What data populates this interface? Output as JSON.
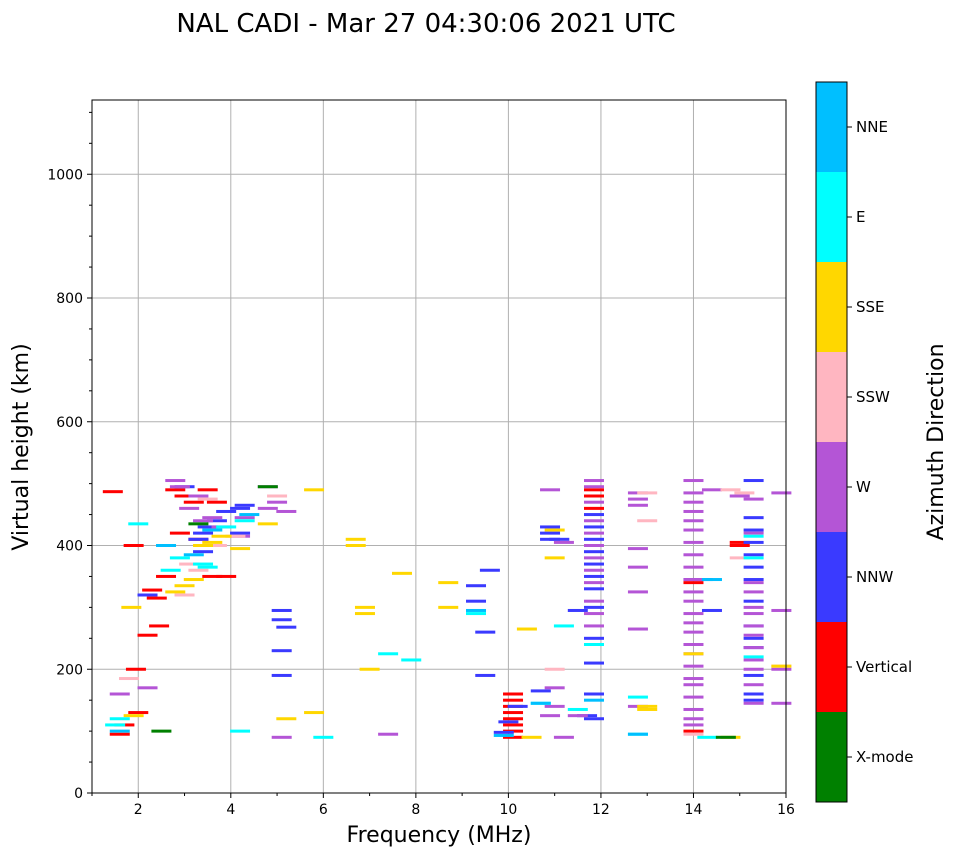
{
  "chart_data": {
    "type": "scatter",
    "title": "NAL CADI - Mar 27 04:30:06 2021 UTC",
    "xlabel": "Frequency (MHz)",
    "ylabel": "Virtual height (km)",
    "xlim": [
      1,
      16
    ],
    "ylim": [
      0,
      1120
    ],
    "xticks": [
      2,
      4,
      6,
      8,
      10,
      12,
      14,
      16
    ],
    "yticks": [
      0,
      200,
      400,
      600,
      800,
      1000
    ],
    "grid": true,
    "colorbar": {
      "label": "Azimuth Direction",
      "categories": [
        {
          "name": "X-mode",
          "color": "#008000"
        },
        {
          "name": "Vertical",
          "color": "#ff0000"
        },
        {
          "name": "NNW",
          "color": "#3a3aff"
        },
        {
          "name": "W",
          "color": "#b455d6"
        },
        {
          "name": "SSW",
          "color": "#ffb6c1"
        },
        {
          "name": "SSE",
          "color": "#ffd700"
        },
        {
          "name": "E",
          "color": "#00ffff"
        },
        {
          "name": "NNE",
          "color": "#00bfff"
        }
      ]
    },
    "series": [
      {
        "name": "Vertical",
        "points": [
          [
            1.45,
            487
          ],
          [
            1.9,
            400
          ],
          [
            1.95,
            200
          ],
          [
            2.3,
            328
          ],
          [
            2.45,
            270
          ],
          [
            2.2,
            255
          ],
          [
            2.8,
            490
          ],
          [
            3.0,
            480
          ],
          [
            3.2,
            470
          ],
          [
            3.5,
            490
          ],
          [
            3.7,
            470
          ],
          [
            3.9,
            350
          ],
          [
            3.6,
            350
          ],
          [
            2.6,
            350
          ],
          [
            2.4,
            315
          ],
          [
            1.6,
            95
          ],
          [
            1.7,
            110
          ],
          [
            2.0,
            130
          ],
          [
            10.1,
            160
          ],
          [
            10.1,
            150
          ],
          [
            10.1,
            140
          ],
          [
            10.1,
            130
          ],
          [
            10.1,
            120
          ],
          [
            10.1,
            110
          ],
          [
            10.1,
            100
          ],
          [
            10.1,
            90
          ],
          [
            11.85,
            490
          ],
          [
            11.85,
            480
          ],
          [
            11.85,
            460
          ],
          [
            14.0,
            340
          ],
          [
            14.0,
            100
          ],
          [
            15.0,
            400
          ],
          [
            15.0,
            405
          ],
          [
            2.9,
            420
          ],
          [
            3.3,
            410
          ]
        ]
      },
      {
        "name": "NNW",
        "points": [
          [
            2.2,
            320
          ],
          [
            3.0,
            495
          ],
          [
            3.3,
            410
          ],
          [
            3.4,
            420
          ],
          [
            3.5,
            430
          ],
          [
            3.7,
            440
          ],
          [
            3.9,
            455
          ],
          [
            4.2,
            460
          ],
          [
            4.3,
            465
          ],
          [
            5.1,
            280
          ],
          [
            5.1,
            295
          ],
          [
            5.1,
            230
          ],
          [
            5.1,
            190
          ],
          [
            5.2,
            268
          ],
          [
            9.3,
            335
          ],
          [
            9.3,
            310
          ],
          [
            9.5,
            260
          ],
          [
            9.6,
            360
          ],
          [
            9.5,
            190
          ],
          [
            9.9,
            98
          ],
          [
            10.0,
            115
          ],
          [
            10.2,
            140
          ],
          [
            10.7,
            165
          ],
          [
            10.9,
            430
          ],
          [
            10.9,
            420
          ],
          [
            10.9,
            410
          ],
          [
            11.1,
            410
          ],
          [
            11.5,
            295
          ],
          [
            11.7,
            125
          ],
          [
            11.85,
            450
          ],
          [
            11.85,
            430
          ],
          [
            11.85,
            410
          ],
          [
            11.85,
            390
          ],
          [
            11.85,
            370
          ],
          [
            11.85,
            350
          ],
          [
            11.85,
            330
          ],
          [
            11.85,
            300
          ],
          [
            11.85,
            250
          ],
          [
            11.85,
            210
          ],
          [
            11.85,
            160
          ],
          [
            11.85,
            120
          ],
          [
            14.0,
            345
          ],
          [
            14.2,
            345
          ],
          [
            14.4,
            295
          ],
          [
            15.3,
            505
          ],
          [
            15.3,
            445
          ],
          [
            15.3,
            425
          ],
          [
            15.3,
            405
          ],
          [
            15.3,
            385
          ],
          [
            15.3,
            365
          ],
          [
            15.3,
            345
          ],
          [
            15.3,
            310
          ],
          [
            15.3,
            270
          ],
          [
            15.3,
            250
          ],
          [
            15.3,
            235
          ],
          [
            15.3,
            190
          ],
          [
            15.3,
            160
          ],
          [
            15.3,
            150
          ],
          [
            4.2,
            420
          ],
          [
            3.4,
            390
          ]
        ]
      },
      {
        "name": "W",
        "points": [
          [
            1.6,
            160
          ],
          [
            2.2,
            170
          ],
          [
            2.8,
            505
          ],
          [
            2.9,
            495
          ],
          [
            3.1,
            460
          ],
          [
            3.3,
            480
          ],
          [
            3.4,
            440
          ],
          [
            3.6,
            445
          ],
          [
            3.8,
            430
          ],
          [
            4.2,
            415
          ],
          [
            4.3,
            445
          ],
          [
            4.8,
            495
          ],
          [
            4.8,
            460
          ],
          [
            5.0,
            470
          ],
          [
            5.2,
            455
          ],
          [
            5.1,
            90
          ],
          [
            7.4,
            95
          ],
          [
            10.9,
            490
          ],
          [
            11.2,
            405
          ],
          [
            11.0,
            170
          ],
          [
            11.0,
            140
          ],
          [
            11.2,
            90
          ],
          [
            11.85,
            505
          ],
          [
            11.85,
            495
          ],
          [
            11.85,
            470
          ],
          [
            11.85,
            440
          ],
          [
            11.85,
            420
          ],
          [
            11.85,
            400
          ],
          [
            11.85,
            380
          ],
          [
            11.85,
            360
          ],
          [
            11.85,
            340
          ],
          [
            11.85,
            310
          ],
          [
            11.85,
            290
          ],
          [
            11.85,
            270
          ],
          [
            11.85,
            240
          ],
          [
            12.8,
            485
          ],
          [
            12.8,
            475
          ],
          [
            12.8,
            465
          ],
          [
            12.8,
            395
          ],
          [
            12.8,
            365
          ],
          [
            12.8,
            325
          ],
          [
            12.8,
            265
          ],
          [
            12.8,
            140
          ],
          [
            14.0,
            505
          ],
          [
            14.0,
            485
          ],
          [
            14.0,
            470
          ],
          [
            14.0,
            455
          ],
          [
            14.0,
            440
          ],
          [
            14.0,
            425
          ],
          [
            14.0,
            405
          ],
          [
            14.0,
            385
          ],
          [
            14.0,
            365
          ],
          [
            14.0,
            345
          ],
          [
            14.0,
            325
          ],
          [
            14.0,
            310
          ],
          [
            14.0,
            290
          ],
          [
            14.0,
            275
          ],
          [
            14.0,
            260
          ],
          [
            14.0,
            240
          ],
          [
            14.0,
            225
          ],
          [
            14.0,
            205
          ],
          [
            14.0,
            185
          ],
          [
            14.0,
            175
          ],
          [
            14.0,
            155
          ],
          [
            14.0,
            135
          ],
          [
            14.0,
            120
          ],
          [
            14.0,
            110
          ],
          [
            14.4,
            490
          ],
          [
            15.0,
            480
          ],
          [
            15.3,
            475
          ],
          [
            15.3,
            420
          ],
          [
            15.3,
            340
          ],
          [
            15.3,
            325
          ],
          [
            15.3,
            300
          ],
          [
            15.3,
            290
          ],
          [
            15.3,
            270
          ],
          [
            15.3,
            255
          ],
          [
            15.3,
            235
          ],
          [
            15.3,
            215
          ],
          [
            15.3,
            200
          ],
          [
            15.3,
            175
          ],
          [
            15.3,
            145
          ],
          [
            15.9,
            485
          ],
          [
            15.9,
            295
          ],
          [
            15.9,
            200
          ],
          [
            15.9,
            145
          ],
          [
            11.5,
            125
          ],
          [
            10.9,
            125
          ]
        ]
      },
      {
        "name": "SSW",
        "points": [
          [
            1.8,
            185
          ],
          [
            3.1,
            370
          ],
          [
            3.3,
            360
          ],
          [
            3.5,
            475
          ],
          [
            3.7,
            400
          ],
          [
            4.1,
            415
          ],
          [
            5.0,
            480
          ],
          [
            13.0,
            440
          ],
          [
            13.0,
            485
          ],
          [
            14.0,
            95
          ],
          [
            14.8,
            490
          ],
          [
            15.0,
            380
          ],
          [
            15.1,
            485
          ],
          [
            15.9,
            205
          ],
          [
            11.0,
            200
          ],
          [
            3.0,
            320
          ]
        ]
      },
      {
        "name": "SSE",
        "points": [
          [
            1.85,
            300
          ],
          [
            1.9,
            125
          ],
          [
            2.8,
            325
          ],
          [
            3.0,
            335
          ],
          [
            3.2,
            345
          ],
          [
            3.4,
            400
          ],
          [
            3.6,
            405
          ],
          [
            3.8,
            415
          ],
          [
            4.2,
            395
          ],
          [
            4.8,
            435
          ],
          [
            5.2,
            120
          ],
          [
            5.8,
            130
          ],
          [
            5.8,
            490
          ],
          [
            6.7,
            410
          ],
          [
            6.7,
            400
          ],
          [
            6.9,
            300
          ],
          [
            6.9,
            290
          ],
          [
            7.0,
            200
          ],
          [
            7.7,
            355
          ],
          [
            8.7,
            340
          ],
          [
            8.7,
            300
          ],
          [
            10.5,
            90
          ],
          [
            11.0,
            425
          ],
          [
            11.0,
            380
          ],
          [
            13.0,
            140
          ],
          [
            13.0,
            135
          ],
          [
            14.0,
            225
          ],
          [
            14.8,
            90
          ],
          [
            15.9,
            205
          ],
          [
            10.4,
            265
          ]
        ]
      },
      {
        "name": "E",
        "points": [
          [
            1.5,
            110
          ],
          [
            1.6,
            120
          ],
          [
            2.0,
            435
          ],
          [
            2.7,
            360
          ],
          [
            2.9,
            380
          ],
          [
            3.4,
            370
          ],
          [
            3.5,
            365
          ],
          [
            3.9,
            430
          ],
          [
            4.3,
            440
          ],
          [
            4.2,
            100
          ],
          [
            6.0,
            90
          ],
          [
            7.4,
            225
          ],
          [
            7.9,
            215
          ],
          [
            9.3,
            290
          ],
          [
            11.2,
            270
          ],
          [
            11.5,
            135
          ],
          [
            12.8,
            155
          ],
          [
            12.8,
            95
          ],
          [
            14.3,
            90
          ],
          [
            15.3,
            415
          ],
          [
            15.3,
            380
          ],
          [
            15.3,
            220
          ],
          [
            11.85,
            240
          ],
          [
            10.7,
            145
          ]
        ]
      },
      {
        "name": "NNE",
        "points": [
          [
            1.6,
            100
          ],
          [
            2.6,
            400
          ],
          [
            3.2,
            385
          ],
          [
            3.6,
            425
          ],
          [
            4.4,
            450
          ],
          [
            9.3,
            295
          ],
          [
            9.9,
            93
          ],
          [
            10.7,
            145
          ],
          [
            11.85,
            150
          ],
          [
            12.8,
            95
          ],
          [
            14.4,
            345
          ]
        ]
      },
      {
        "name": "X-mode",
        "points": [
          [
            2.5,
            100
          ],
          [
            4.8,
            495
          ],
          [
            14.7,
            90
          ],
          [
            3.3,
            435
          ]
        ]
      }
    ]
  }
}
